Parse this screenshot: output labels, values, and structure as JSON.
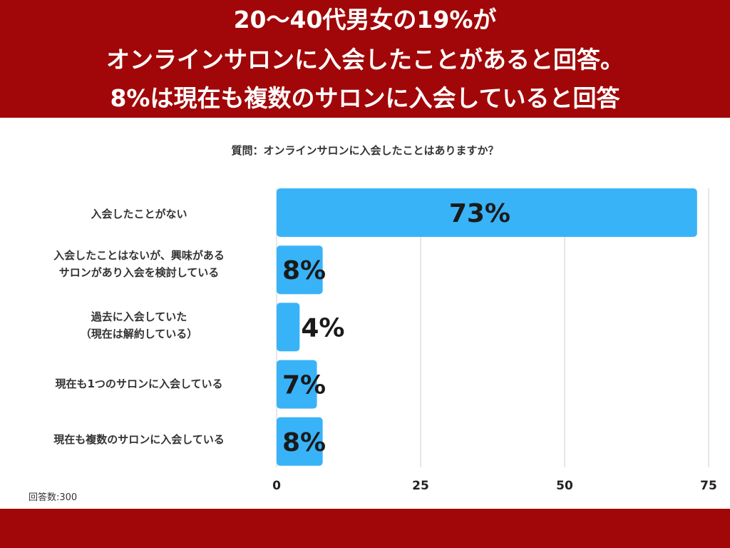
{
  "header": {
    "title_lines": [
      "20〜40代男女の19%が",
      "オンラインサロンに入会したことがあると回答。",
      "8%は現在も複数のサロンに入会していると回答"
    ]
  },
  "question": "質問：オンラインサロンに入会したことはありますか？",
  "sample_note": "回答数:300",
  "colors": {
    "banner": "#a10708",
    "bar": "#39b3f7",
    "grid": "#cfcfcf"
  },
  "chart_data": {
    "type": "bar",
    "orientation": "horizontal",
    "categories": [
      "入会したことがない",
      "入会したことはないが、興味がある\nサロンがあり入会を検討している",
      "過去に入会していた\n（現在は解約している）",
      "現在も1つのサロンに入会している",
      "現在も複数のサロンに入会している"
    ],
    "values": [
      73,
      8,
      4,
      7,
      8
    ],
    "value_labels": [
      "73%",
      "8%",
      "4%",
      "7%",
      "8%"
    ],
    "xlim": [
      0,
      75
    ],
    "xticks": [
      0,
      25,
      50,
      75
    ],
    "xtick_labels": [
      "0",
      "25",
      "50",
      "75"
    ],
    "grid": true,
    "legend": "none"
  }
}
